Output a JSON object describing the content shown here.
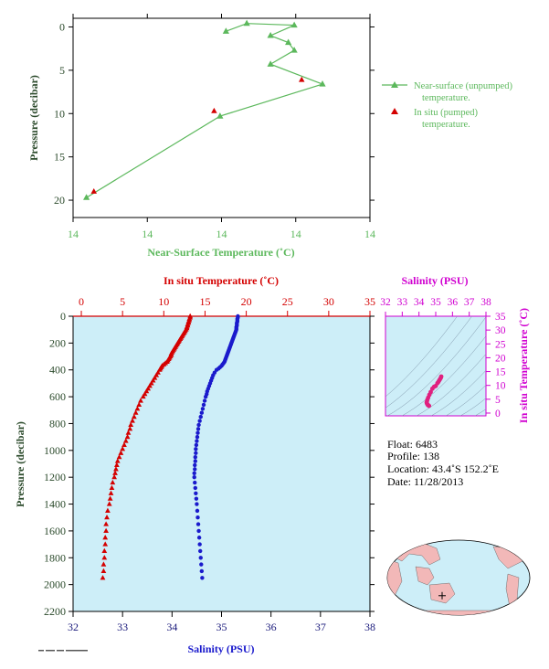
{
  "colors": {
    "green": "#5cb85c",
    "red": "#d40000",
    "blue": "#1a1acc",
    "magenta": "#d000d0",
    "pink": "#e0207f",
    "panel_bg": "#cdeef8",
    "axis_text": "#2b4a2b",
    "navy": "#18187a"
  },
  "chart_data": [
    {
      "type": "line",
      "name": "near-surface-panel",
      "xlabel": "Near-Surface Temperature (˚C)",
      "ylabel": "Pressure (decibar)",
      "x_tick_labels": [
        "14",
        "14",
        "14",
        "14",
        "14"
      ],
      "y_ticks": [
        0,
        5,
        10,
        15,
        20
      ],
      "ylim": [
        -1,
        22
      ],
      "y_inverted": true,
      "series": [
        {
          "name": "Near-surface (unpumped) temperature.",
          "marker": "triangle",
          "points": [
            {
              "x": 0.515,
              "y": 0.5
            },
            {
              "x": 0.585,
              "y": -0.4
            },
            {
              "x": 0.745,
              "y": -0.2
            },
            {
              "x": 0.665,
              "y": 1.0
            },
            {
              "x": 0.725,
              "y": 1.8
            },
            {
              "x": 0.745,
              "y": 2.7
            },
            {
              "x": 0.665,
              "y": 4.3
            },
            {
              "x": 0.84,
              "y": 6.6
            },
            {
              "x": 0.495,
              "y": 10.3
            },
            {
              "x": 0.045,
              "y": 19.7
            }
          ]
        },
        {
          "name": "In situ (pumped) temperature.",
          "marker": "triangle",
          "points": [
            {
              "x": 0.77,
              "y": 6.1
            },
            {
              "x": 0.475,
              "y": 9.7
            },
            {
              "x": 0.07,
              "y": 19.0
            }
          ]
        }
      ]
    },
    {
      "type": "scatter",
      "name": "profile-panel",
      "top_axis_label": "In situ Temperature (˚C)",
      "bottom_axis_label": "Salinity (PSU)",
      "ylabel": "Pressure (decibar)",
      "temp_ticks": [
        0,
        5,
        10,
        15,
        20,
        25,
        30,
        35
      ],
      "sal_ticks": [
        32,
        33,
        34,
        35,
        36,
        37,
        38
      ],
      "pressure_ticks": [
        0,
        200,
        400,
        600,
        800,
        1000,
        1200,
        1400,
        1600,
        1800,
        2000,
        2200
      ],
      "temp_range": [
        -1,
        35
      ],
      "sal_range": [
        32,
        38
      ],
      "pressure_range": [
        0,
        2200
      ],
      "series": [
        {
          "name": "temperature",
          "marker": "triangle",
          "p": [
            0,
            10,
            20,
            30,
            40,
            50,
            60,
            70,
            80,
            90,
            100,
            110,
            120,
            130,
            140,
            150,
            160,
            170,
            180,
            190,
            200,
            210,
            220,
            230,
            240,
            250,
            260,
            270,
            280,
            290,
            300,
            310,
            320,
            330,
            340,
            350,
            360,
            370,
            380,
            390,
            400,
            420,
            440,
            460,
            480,
            500,
            520,
            540,
            560,
            580,
            600,
            630,
            660,
            690,
            720,
            750,
            780,
            810,
            840,
            870,
            900,
            930,
            960,
            990,
            1020,
            1050,
            1080,
            1110,
            1140,
            1170,
            1200,
            1240,
            1280,
            1320,
            1360,
            1400,
            1450,
            1500,
            1550,
            1600,
            1650,
            1700,
            1750,
            1800,
            1850,
            1900,
            1950
          ],
          "t": [
            13.2,
            13.2,
            13.1,
            13.1,
            13.0,
            13.0,
            12.9,
            12.9,
            12.8,
            12.8,
            12.7,
            12.6,
            12.5,
            12.4,
            12.3,
            12.2,
            12.1,
            12.0,
            11.9,
            11.8,
            11.7,
            11.6,
            11.5,
            11.4,
            11.3,
            11.2,
            11.1,
            11.0,
            10.9,
            10.9,
            10.8,
            10.7,
            10.6,
            10.5,
            10.4,
            10.2,
            10.0,
            9.8,
            9.7,
            9.6,
            9.5,
            9.3,
            9.1,
            8.9,
            8.7,
            8.5,
            8.3,
            8.1,
            7.9,
            7.7,
            7.5,
            7.2,
            7.0,
            6.8,
            6.6,
            6.4,
            6.2,
            6.0,
            5.9,
            5.7,
            5.6,
            5.4,
            5.2,
            5.0,
            4.8,
            4.6,
            4.4,
            4.3,
            4.2,
            4.1,
            4.0,
            3.8,
            3.7,
            3.6,
            3.5,
            3.4,
            3.2,
            3.1,
            3.0,
            3.0,
            2.9,
            2.9,
            2.8,
            2.8,
            2.7,
            2.7,
            2.6
          ]
        },
        {
          "name": "salinity",
          "marker": "circle",
          "p": [
            0,
            10,
            20,
            30,
            40,
            50,
            60,
            70,
            80,
            90,
            100,
            110,
            120,
            130,
            140,
            150,
            160,
            170,
            180,
            190,
            200,
            210,
            220,
            230,
            240,
            250,
            260,
            270,
            280,
            290,
            300,
            310,
            320,
            330,
            340,
            350,
            360,
            370,
            380,
            390,
            400,
            420,
            440,
            460,
            480,
            500,
            520,
            540,
            560,
            580,
            600,
            630,
            660,
            690,
            720,
            750,
            780,
            810,
            840,
            870,
            900,
            930,
            960,
            990,
            1020,
            1050,
            1080,
            1110,
            1140,
            1170,
            1200,
            1240,
            1280,
            1320,
            1360,
            1400,
            1450,
            1500,
            1550,
            1600,
            1650,
            1700,
            1750,
            1800,
            1850,
            1900,
            1950
          ],
          "s": [
            35.33,
            35.33,
            35.32,
            35.32,
            35.32,
            35.31,
            35.31,
            35.31,
            35.3,
            35.3,
            35.3,
            35.29,
            35.28,
            35.27,
            35.26,
            35.25,
            35.24,
            35.23,
            35.22,
            35.21,
            35.2,
            35.19,
            35.18,
            35.17,
            35.16,
            35.15,
            35.14,
            35.13,
            35.12,
            35.11,
            35.1,
            35.09,
            35.08,
            35.07,
            35.06,
            35.04,
            35.02,
            35.0,
            34.97,
            34.94,
            34.9,
            34.86,
            34.83,
            34.81,
            34.79,
            34.77,
            34.75,
            34.73,
            34.71,
            34.7,
            34.68,
            34.66,
            34.64,
            34.62,
            34.6,
            34.58,
            34.56,
            34.54,
            34.53,
            34.52,
            34.51,
            34.5,
            34.49,
            34.48,
            34.48,
            34.47,
            34.47,
            34.46,
            34.46,
            34.45,
            34.45,
            34.46,
            34.47,
            34.48,
            34.49,
            34.5,
            34.51,
            34.52,
            34.53,
            34.54,
            34.55,
            34.56,
            34.57,
            34.58,
            34.59,
            34.6,
            34.61
          ]
        }
      ]
    },
    {
      "type": "scatter",
      "name": "ts-diagram",
      "top_axis_label": "Salinity (PSU)",
      "right_axis_label": "In situ Temperature (˚C)",
      "sal_ticks": [
        32,
        33,
        34,
        35,
        36,
        37,
        38
      ],
      "temp_ticks": [
        0,
        5,
        10,
        15,
        20,
        25,
        30,
        35
      ],
      "sal_range": [
        32,
        38
      ],
      "temp_range": [
        -1,
        35
      ],
      "series": [
        {
          "name": "ts-curve",
          "s": [
            35.33,
            35.3,
            35.25,
            35.2,
            35.15,
            35.1,
            35.0,
            34.9,
            34.8,
            34.7,
            34.62,
            34.55,
            34.5,
            34.47,
            34.46,
            34.48,
            34.52,
            34.56,
            34.6
          ],
          "t": [
            13.2,
            12.7,
            12.2,
            11.7,
            11.2,
            10.8,
            9.8,
            9.5,
            8.8,
            7.6,
            6.6,
            5.6,
            4.8,
            4.1,
            3.8,
            3.4,
            3.0,
            2.8,
            2.6
          ]
        }
      ]
    }
  ],
  "legend": {
    "near_surface_line1": "Near-surface (unpumped)",
    "near_surface_line2": "temperature.",
    "in_situ_line1": "In situ (pumped)",
    "in_situ_line2": "temperature."
  },
  "info": {
    "float": "Float:  6483",
    "profile": "Profile:  138",
    "location": "Location:  43.4˚S  152.2˚E",
    "date": "Date:  11/28/2013"
  },
  "map": {
    "marker_lon": 152.2,
    "marker_lat": -43.4
  }
}
